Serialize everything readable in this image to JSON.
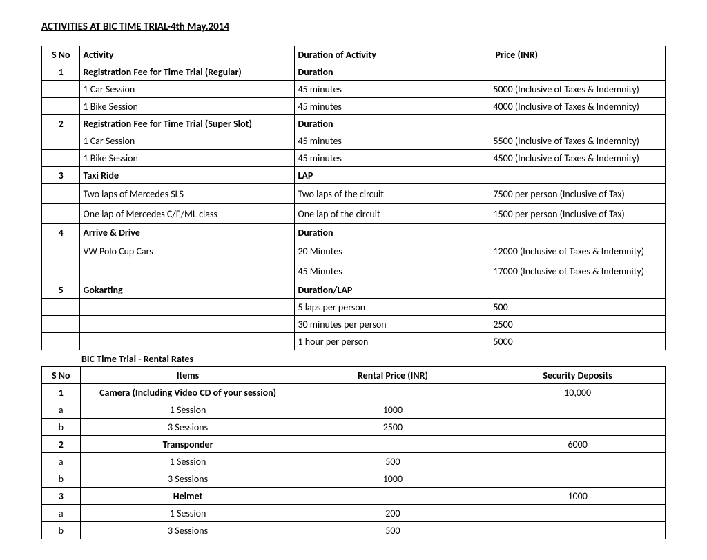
{
  "title": "ACTIVITIES AT BIC TIME TRIAL-4th May.2014",
  "table1": {
    "headers": {
      "sno": "S No",
      "activity": "Activity",
      "duration": "Duration of Activity",
      "price": "Price (INR)"
    },
    "rows": [
      {
        "sno": "1",
        "activity": "Registration Fee for Time Trial (Regular)",
        "duration": "Duration",
        "price": "",
        "bold": true
      },
      {
        "sno": "",
        "activity": "1 Car Session",
        "duration": "45 minutes",
        "price": "5000 (Inclusive of Taxes & Indemnity)"
      },
      {
        "sno": "",
        "activity": "1 Bike Session",
        "duration": "45 minutes",
        "price": "4000 (Inclusive of Taxes & Indemnity)"
      },
      {
        "sno": "2",
        "activity": "Registration Fee for Time Trial (Super Slot)",
        "duration": "Duration",
        "price": "",
        "bold": true
      },
      {
        "sno": "",
        "activity": "1 Car Session",
        "duration": "45 minutes",
        "price": "5500 (Inclusive of Taxes & Indemnity)"
      },
      {
        "sno": "",
        "activity": "1 Bike Session",
        "duration": "45 minutes",
        "price": "4500 (Inclusive of Taxes & Indemnity)"
      },
      {
        "sno": "3",
        "activity": "Taxi Ride",
        "duration": "LAP",
        "price": "",
        "bold": true
      },
      {
        "sno": "",
        "activity": "Two laps of Mercedes SLS",
        "duration": "Two laps of the circuit",
        "price": "7500 per person (Inclusive of Tax)",
        "tall": true
      },
      {
        "sno": "",
        "activity": "One lap of Mercedes C/E/ML class",
        "duration": "One lap of the circuit",
        "price": "1500 per person (Inclusive of Tax)",
        "tall": true
      },
      {
        "sno": "4",
        "activity": "Arrive & Drive",
        "duration": "Duration",
        "price": "",
        "bold": true
      },
      {
        "sno": "",
        "activity": "VW Polo Cup Cars",
        "duration": "20 Minutes",
        "price": "12000 (Inclusive of Taxes & Indemnity)",
        "tall": true
      },
      {
        "sno": "",
        "activity": "",
        "duration": "45 Minutes",
        "price": "17000 (Inclusive of Taxes & Indemnity)",
        "tall": true
      },
      {
        "sno": "5",
        "activity": "Gokarting",
        "duration": "Duration/LAP",
        "price": "",
        "bold": true
      },
      {
        "sno": "",
        "activity": "",
        "duration": "5 laps per person",
        "price": "500"
      },
      {
        "sno": "",
        "activity": "",
        "duration": "30 minutes per person",
        "price": "2500"
      },
      {
        "sno": "",
        "activity": "",
        "duration": "1 hour per person",
        "price": "5000"
      }
    ]
  },
  "subtitle": "BIC Time Trial - Rental Rates",
  "table2": {
    "headers": {
      "sno": "S No",
      "items": "Items",
      "rental": "Rental Price (INR)",
      "dep": "Security Deposits"
    },
    "rows": [
      {
        "sno": "1",
        "items": "Camera (Including Video CD of your session)",
        "rental": "",
        "dep": "10,000",
        "bold": true
      },
      {
        "sno": "a",
        "items": "1 Session",
        "rental": "1000",
        "dep": ""
      },
      {
        "sno": "b",
        "items": "3 Sessions",
        "rental": "2500",
        "dep": ""
      },
      {
        "sno": "2",
        "items": "Transponder",
        "rental": "",
        "dep": "6000",
        "bold": true
      },
      {
        "sno": "a",
        "items": "1 Session",
        "rental": "500",
        "dep": ""
      },
      {
        "sno": "b",
        "items": "3 Sessions",
        "rental": "1000",
        "dep": ""
      },
      {
        "sno": "3",
        "items": "Helmet",
        "rental": "",
        "dep": "1000",
        "bold": true
      },
      {
        "sno": "a",
        "items": "1 Session",
        "rental": "200",
        "dep": ""
      },
      {
        "sno": "b",
        "items": "3 Sessions",
        "rental": "500",
        "dep": ""
      }
    ]
  }
}
